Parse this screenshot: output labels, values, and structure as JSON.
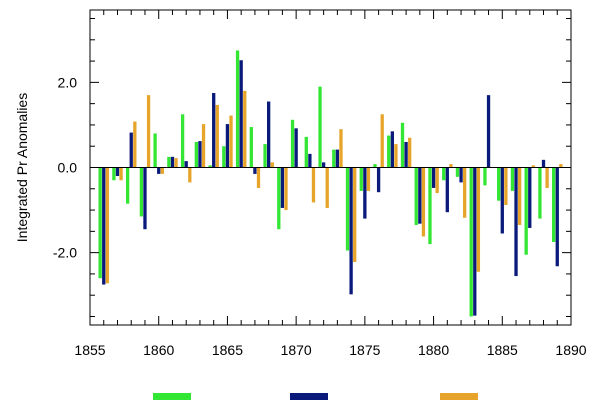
{
  "chart_data": {
    "type": "bar",
    "ylabel": "Integrated Pr Anomalies",
    "xlim": [
      1855,
      1890
    ],
    "ylim": [
      -3.7,
      3.7
    ],
    "x_ticks": [
      "1855",
      "1860",
      "1865",
      "1870",
      "1875",
      "1880",
      "1885",
      "1890"
    ],
    "y_ticks": [
      "-2.0",
      "0.0",
      "2.0"
    ],
    "y_tick_values": [
      -2.0,
      0.0,
      2.0
    ],
    "grid": false,
    "legend_position": "bottom",
    "x": [
      1856,
      1857,
      1858,
      1859,
      1860,
      1861,
      1862,
      1863,
      1864,
      1865,
      1866,
      1867,
      1868,
      1869,
      1870,
      1871,
      1872,
      1873,
      1874,
      1875,
      1876,
      1877,
      1878,
      1879,
      1880,
      1881,
      1882,
      1883,
      1884,
      1885,
      1886,
      1887,
      1888,
      1889
    ],
    "series": [
      {
        "color": "#33e633",
        "values": [
          -2.6,
          -0.3,
          -0.85,
          -1.15,
          0.8,
          0.25,
          1.25,
          0.6,
          0.05,
          0.5,
          2.75,
          0.95,
          0.55,
          -1.45,
          1.12,
          0.72,
          1.9,
          0.42,
          -1.95,
          -0.55,
          0.08,
          0.75,
          1.05,
          -1.35,
          -1.8,
          -0.3,
          -0.22,
          -3.5,
          -0.42,
          -0.78,
          -0.55,
          -2.05,
          -1.2,
          -1.75
        ]
      },
      {
        "color": "#0a1a7a",
        "values": [
          -2.75,
          -0.2,
          0.82,
          -1.45,
          -0.15,
          0.25,
          0.15,
          0.62,
          1.75,
          1.02,
          2.52,
          -0.15,
          1.55,
          -0.95,
          0.92,
          0.32,
          0.12,
          0.42,
          -2.98,
          -1.2,
          -0.58,
          0.85,
          0.6,
          -1.32,
          -0.48,
          -1.05,
          -0.35,
          -3.48,
          1.7,
          -1.55,
          -2.55,
          -1.42,
          0.18,
          -2.32
        ]
      },
      {
        "color": "#e6a52a",
        "values": [
          -2.72,
          -0.3,
          1.08,
          1.7,
          -0.15,
          0.22,
          -0.35,
          1.02,
          1.47,
          1.22,
          1.8,
          -0.48,
          0.12,
          -1.0,
          0.0,
          -0.82,
          -0.95,
          0.9,
          -2.22,
          -0.55,
          1.25,
          0.55,
          0.7,
          -1.62,
          -0.6,
          0.08,
          -1.18,
          -2.45,
          0.0,
          -0.88,
          -1.35,
          0.05,
          -0.48,
          0.08
        ]
      }
    ]
  }
}
